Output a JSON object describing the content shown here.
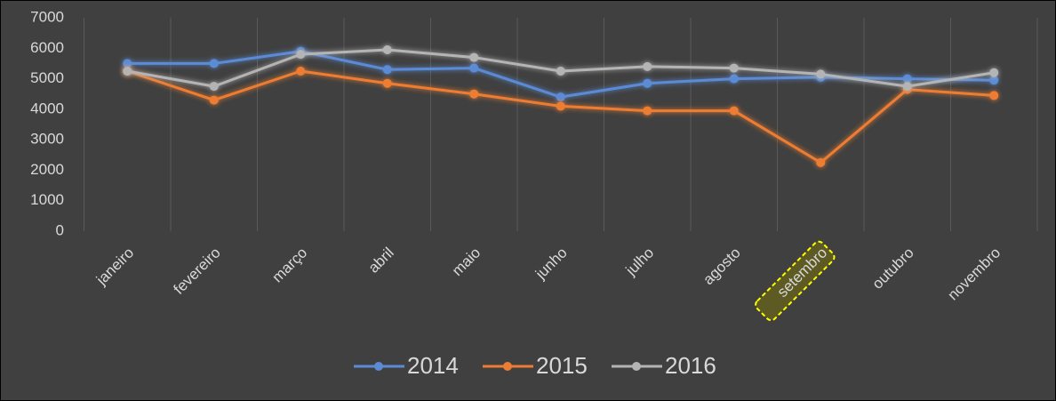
{
  "chart_data": {
    "type": "line",
    "categories": [
      "janeiro",
      "fevereiro",
      "março",
      "abril",
      "maio",
      "junho",
      "julho",
      "agosto",
      "setembro",
      "outubro",
      "novembro"
    ],
    "series": [
      {
        "name": "2014",
        "color": "#5b8bd6",
        "values": [
          5500,
          5500,
          5900,
          5300,
          5350,
          4400,
          4850,
          5000,
          5050,
          5000,
          4950
        ]
      },
      {
        "name": "2015",
        "color": "#ed7d31",
        "values": [
          5250,
          4300,
          5250,
          4850,
          4500,
          4100,
          3950,
          3950,
          2250,
          4650,
          4450
        ]
      },
      {
        "name": "2016",
        "color": "#b4b4b4",
        "values": [
          5250,
          4750,
          5800,
          5950,
          5700,
          5250,
          5400,
          5350,
          5150,
          4750,
          5200
        ]
      }
    ],
    "ylim": [
      0,
      7000
    ],
    "yticks": [
      0,
      1000,
      2000,
      3000,
      4000,
      5000,
      6000,
      7000
    ],
    "grid": "vertical",
    "legend": "bottom"
  }
}
